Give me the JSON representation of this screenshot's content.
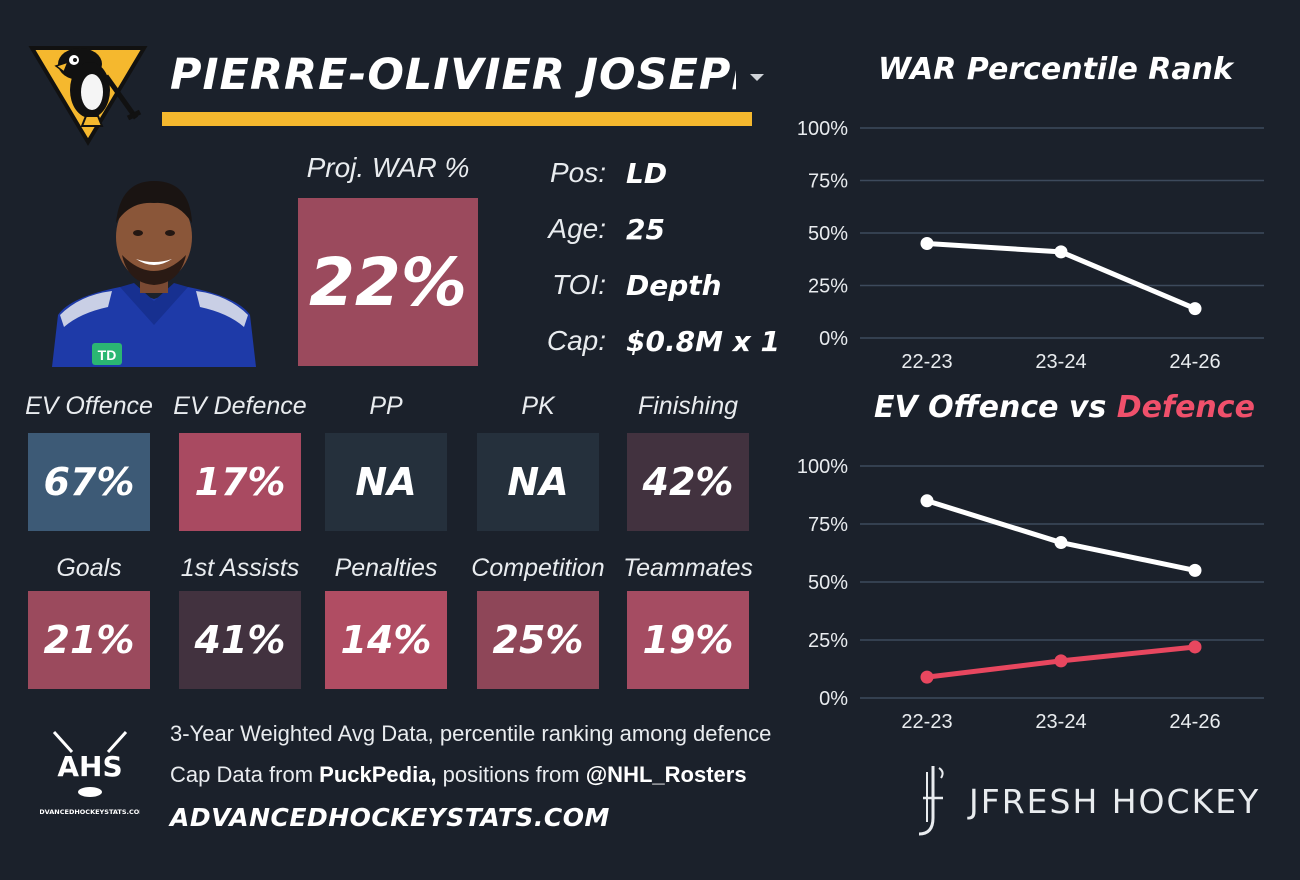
{
  "player": {
    "name": "PIERRE-OLIVIER JOSEPH",
    "proj_war_label": "Proj. WAR %",
    "proj_war_value": "22%",
    "info": [
      {
        "label": "Pos:",
        "value": "LD"
      },
      {
        "label": "Age:",
        "value": "25"
      },
      {
        "label": "TOI:",
        "value": "Depth"
      },
      {
        "label": "Cap:",
        "value": "$0.8M x 1"
      }
    ]
  },
  "tiles_row1": [
    {
      "label": "EV Offence",
      "value": "67%",
      "color": "#3d5a76"
    },
    {
      "label": "EV Defence",
      "value": "17%",
      "color": "#a94a61"
    },
    {
      "label": "PP",
      "value": "NA",
      "color": "#25303c"
    },
    {
      "label": "PK",
      "value": "NA",
      "color": "#25303c"
    },
    {
      "label": "Finishing",
      "value": "42%",
      "color": "#42323f"
    }
  ],
  "tiles_row2": [
    {
      "label": "Goals",
      "value": "21%",
      "color": "#9b4a5d"
    },
    {
      "label": "1st Assists",
      "value": "41%",
      "color": "#42323f"
    },
    {
      "label": "Penalties",
      "value": "14%",
      "color": "#b04d63"
    },
    {
      "label": "Competition",
      "value": "25%",
      "color": "#8e4658"
    },
    {
      "label": "Teammates",
      "value": "19%",
      "color": "#a54c62"
    }
  ],
  "footer": {
    "logo_text": "AHS",
    "logo_sub": "ADVANCEDHOCKEYSTATS.COM",
    "line1": "3-Year Weighted Avg Data, percentile ranking among defence",
    "line2_pre": "Cap Data from ",
    "line2_bold1": "PuckPedia,",
    "line2_mid": " positions from ",
    "line2_bold2": "@NHL_Rosters",
    "url": "ADVANCEDHOCKEYSTATS.COM",
    "brand": "JFRESH HOCKEY"
  },
  "chart_data": [
    {
      "type": "line",
      "title": "WAR Percentile Rank",
      "categories": [
        "22-23",
        "23-24",
        "24-26"
      ],
      "series": [
        {
          "values": [
            45,
            41,
            14
          ],
          "color": "#ffffff"
        }
      ],
      "ylim": [
        0,
        100
      ],
      "yticks": [
        "0%",
        "25%",
        "50%",
        "75%",
        "100%"
      ],
      "grid": true
    },
    {
      "type": "line",
      "title_part1": "EV Offence vs ",
      "title_part2": "Defence",
      "title_part2_color": "#f0506b",
      "categories": [
        "22-23",
        "23-24",
        "24-26"
      ],
      "series": [
        {
          "values": [
            85,
            67,
            55
          ],
          "color": "#ffffff"
        },
        {
          "values": [
            9,
            16,
            22
          ],
          "color": "#e8475f"
        }
      ],
      "ylim": [
        0,
        100
      ],
      "yticks": [
        "0%",
        "25%",
        "50%",
        "75%",
        "100%"
      ],
      "grid": true
    }
  ]
}
